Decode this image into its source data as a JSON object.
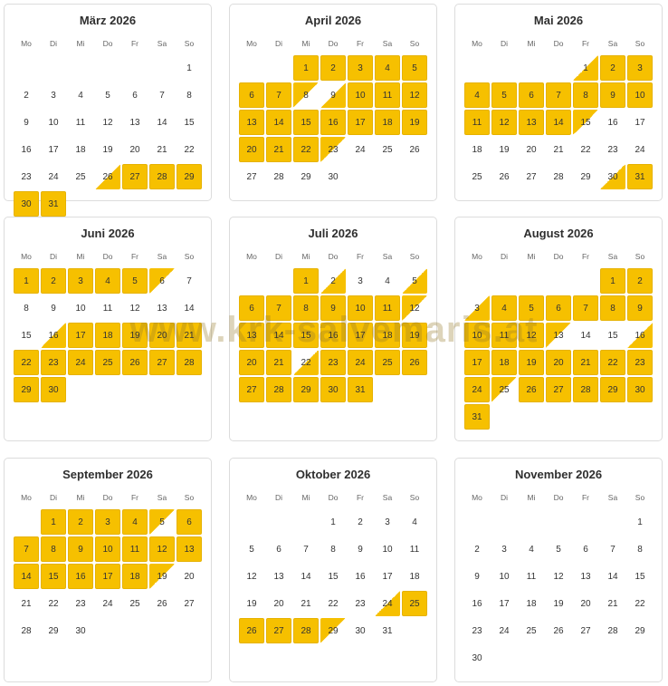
{
  "weekdays": [
    "Mo",
    "Di",
    "Mi",
    "Do",
    "Fr",
    "Sa",
    "So"
  ],
  "watermark": "www.krk-salvemaris.at",
  "colors": {
    "booked": "#f6c000",
    "border": "#dcdcdc",
    "text": "#333333"
  },
  "months": [
    {
      "title": "März 2026",
      "days": 31,
      "start_weekday": 6,
      "booked": [
        27,
        28,
        29,
        30,
        31
      ],
      "arrivals": [
        26
      ],
      "departures": []
    },
    {
      "title": "April 2026",
      "days": 30,
      "start_weekday": 2,
      "booked": [
        1,
        2,
        3,
        4,
        5,
        6,
        7,
        10,
        11,
        12,
        13,
        14,
        15,
        16,
        17,
        18,
        19,
        20,
        21,
        22
      ],
      "arrivals": [
        9
      ],
      "departures": [
        8,
        23
      ]
    },
    {
      "title": "Mai 2026",
      "days": 31,
      "start_weekday": 4,
      "booked": [
        2,
        3,
        4,
        5,
        6,
        7,
        8,
        9,
        10,
        11,
        12,
        13,
        14,
        31
      ],
      "arrivals": [
        1,
        30
      ],
      "departures": [
        15
      ]
    },
    {
      "title": "Juni 2026",
      "days": 30,
      "start_weekday": 0,
      "booked": [
        1,
        2,
        3,
        4,
        5,
        17,
        18,
        19,
        20,
        21,
        22,
        23,
        24,
        25,
        26,
        27,
        28,
        29,
        30
      ],
      "arrivals": [
        16
      ],
      "departures": [
        6
      ]
    },
    {
      "title": "Juli 2026",
      "days": 31,
      "start_weekday": 2,
      "booked": [
        1,
        6,
        7,
        8,
        9,
        10,
        11,
        13,
        14,
        15,
        16,
        17,
        18,
        19,
        20,
        21,
        23,
        24,
        25,
        26,
        27,
        28,
        29,
        30,
        31
      ],
      "arrivals": [
        2,
        5,
        22
      ],
      "departures": [
        12
      ]
    },
    {
      "title": "August 2026",
      "days": 31,
      "start_weekday": 5,
      "booked": [
        1,
        2,
        4,
        5,
        6,
        7,
        8,
        9,
        10,
        11,
        12,
        17,
        18,
        19,
        20,
        21,
        22,
        23,
        24,
        26,
        27,
        28,
        29,
        30,
        31
      ],
      "arrivals": [
        3,
        16
      ],
      "departures": [
        13,
        25
      ]
    },
    {
      "title": "September 2026",
      "days": 30,
      "start_weekday": 1,
      "booked": [
        1,
        2,
        3,
        4,
        6,
        7,
        8,
        9,
        10,
        11,
        12,
        13,
        14,
        15,
        16,
        17,
        18
      ],
      "arrivals": [],
      "departures": [
        5,
        19
      ]
    },
    {
      "title": "Oktober 2026",
      "days": 31,
      "start_weekday": 3,
      "booked": [
        25,
        26,
        27,
        28
      ],
      "arrivals": [
        24
      ],
      "departures": [
        29
      ]
    },
    {
      "title": "November 2026",
      "days": 30,
      "start_weekday": 6,
      "booked": [],
      "arrivals": [],
      "departures": []
    }
  ]
}
